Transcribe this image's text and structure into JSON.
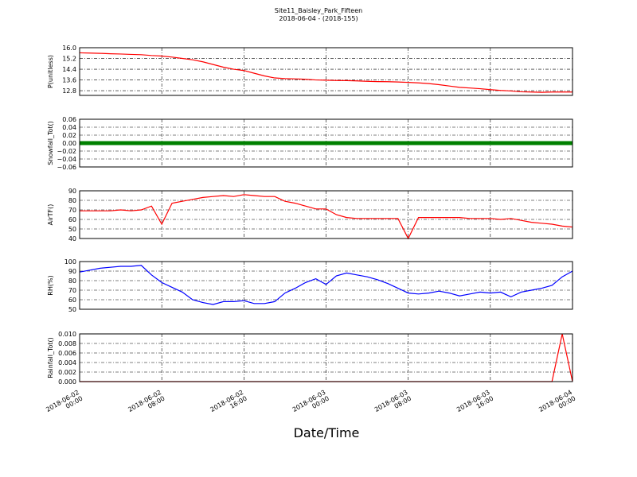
{
  "title": "Site11_Baisley_Park_Fifteen",
  "subtitle": "2018-06-04 - (2018-155)",
  "xlabel": "Date/Time",
  "chart_data": [
    {
      "type": "line",
      "ylabel": "P(unitless)",
      "x": [
        "2018-06-02 00:00",
        "2018-06-02 01:00",
        "2018-06-02 02:00",
        "2018-06-02 03:00",
        "2018-06-02 04:00",
        "2018-06-02 05:00",
        "2018-06-02 06:00",
        "2018-06-02 07:00",
        "2018-06-02 08:00",
        "2018-06-02 09:00",
        "2018-06-02 10:00",
        "2018-06-02 11:00",
        "2018-06-02 12:00",
        "2018-06-02 13:00",
        "2018-06-02 14:00",
        "2018-06-02 15:00",
        "2018-06-02 16:00",
        "2018-06-02 17:00",
        "2018-06-02 18:00",
        "2018-06-02 19:00",
        "2018-06-02 20:00",
        "2018-06-02 21:00",
        "2018-06-02 22:00",
        "2018-06-02 23:00",
        "2018-06-03 00:00",
        "2018-06-03 01:00",
        "2018-06-03 02:00",
        "2018-06-03 03:00",
        "2018-06-03 04:00",
        "2018-06-03 05:00",
        "2018-06-03 06:00",
        "2018-06-03 07:00",
        "2018-06-03 08:00",
        "2018-06-03 09:00",
        "2018-06-03 10:00",
        "2018-06-03 11:00",
        "2018-06-03 12:00",
        "2018-06-03 13:00",
        "2018-06-03 14:00",
        "2018-06-03 15:00",
        "2018-06-03 16:00",
        "2018-06-03 17:00",
        "2018-06-03 18:00",
        "2018-06-03 19:00",
        "2018-06-03 20:00",
        "2018-06-03 21:00",
        "2018-06-03 22:00",
        "2018-06-03 23:00",
        "2018-06-04 00:00"
      ],
      "series": [
        {
          "color": "#ff0000",
          "values": [
            15.62,
            15.6,
            15.58,
            15.55,
            15.53,
            15.5,
            15.48,
            15.42,
            15.38,
            15.3,
            15.2,
            15.1,
            14.95,
            14.75,
            14.55,
            14.4,
            14.3,
            14.1,
            13.9,
            13.75,
            13.7,
            13.68,
            13.65,
            13.6,
            13.58,
            13.56,
            13.55,
            13.53,
            13.5,
            13.48,
            13.47,
            13.45,
            13.42,
            13.38,
            13.33,
            13.25,
            13.15,
            13.05,
            13.0,
            12.95,
            12.88,
            12.82,
            12.78,
            12.72,
            12.7,
            12.68,
            12.7,
            12.7,
            12.7
          ]
        }
      ],
      "xlim": [
        "2018-06-02 00:00",
        "2018-06-04 00:00"
      ],
      "xticks": [
        "2018-06-02 00:00",
        "2018-06-02 08:00",
        "2018-06-02 16:00",
        "2018-06-03 00:00",
        "2018-06-03 08:00",
        "2018-06-03 16:00",
        "2018-06-04 00:00"
      ],
      "ylim": [
        12.45,
        16
      ],
      "yticks": [
        12.8,
        13.6,
        14.4,
        15.2,
        {
          "value": 16,
          "label": "16.0"
        }
      ],
      "grid": true
    },
    {
      "type": "line",
      "ylabel": "Snowfall_Tot()",
      "x": [
        "2018-06-02 00:00",
        "2018-06-02 01:00",
        "2018-06-02 02:00",
        "2018-06-02 03:00",
        "2018-06-02 04:00",
        "2018-06-02 05:00",
        "2018-06-02 06:00",
        "2018-06-02 07:00",
        "2018-06-02 08:00",
        "2018-06-02 09:00",
        "2018-06-02 10:00",
        "2018-06-02 11:00",
        "2018-06-02 12:00",
        "2018-06-02 13:00",
        "2018-06-02 14:00",
        "2018-06-02 15:00",
        "2018-06-02 16:00",
        "2018-06-02 17:00",
        "2018-06-02 18:00",
        "2018-06-02 19:00",
        "2018-06-02 20:00",
        "2018-06-02 21:00",
        "2018-06-02 22:00",
        "2018-06-02 23:00",
        "2018-06-03 00:00",
        "2018-06-03 01:00",
        "2018-06-03 02:00",
        "2018-06-03 03:00",
        "2018-06-03 04:00",
        "2018-06-03 05:00",
        "2018-06-03 06:00",
        "2018-06-03 07:00",
        "2018-06-03 08:00",
        "2018-06-03 09:00",
        "2018-06-03 10:00",
        "2018-06-03 11:00",
        "2018-06-03 12:00",
        "2018-06-03 13:00",
        "2018-06-03 14:00",
        "2018-06-03 15:00",
        "2018-06-03 16:00",
        "2018-06-03 17:00",
        "2018-06-03 18:00",
        "2018-06-03 19:00",
        "2018-06-03 20:00",
        "2018-06-03 21:00",
        "2018-06-03 22:00",
        "2018-06-03 23:00",
        "2018-06-04 00:00"
      ],
      "series": [
        {
          "color": "#008000",
          "values": [
            0,
            0,
            0,
            0,
            0,
            0,
            0,
            0,
            0,
            0,
            0,
            0,
            0,
            0,
            0,
            0,
            0,
            0,
            0,
            0,
            0,
            0,
            0,
            0,
            0,
            0,
            0,
            0,
            0,
            0,
            0,
            0,
            0,
            0,
            0,
            0,
            0,
            0,
            0,
            0,
            0,
            0,
            0,
            0,
            0,
            0,
            0,
            0,
            0
          ]
        }
      ],
      "xlim": [
        "2018-06-02 00:00",
        "2018-06-04 00:00"
      ],
      "xticks": [
        "2018-06-02 00:00",
        "2018-06-02 08:00",
        "2018-06-02 16:00",
        "2018-06-03 00:00",
        "2018-06-03 08:00",
        "2018-06-03 16:00",
        "2018-06-04 00:00"
      ],
      "ylim": [
        -0.06,
        0.06
      ],
      "yticks": [
        {
          "value": -0.06,
          "label": "−0.06"
        },
        {
          "value": -0.04,
          "label": "−0.04"
        },
        {
          "value": -0.02,
          "label": "−0.02"
        },
        {
          "value": 0,
          "label": "0.00"
        },
        0.02,
        0.04,
        0.06
      ],
      "grid": true
    },
    {
      "type": "line",
      "ylabel": "AirTF()",
      "x": [
        "2018-06-02 00:00",
        "2018-06-02 01:00",
        "2018-06-02 02:00",
        "2018-06-02 03:00",
        "2018-06-02 04:00",
        "2018-06-02 05:00",
        "2018-06-02 06:00",
        "2018-06-02 07:00",
        "2018-06-02 08:00",
        "2018-06-02 09:00",
        "2018-06-02 10:00",
        "2018-06-02 11:00",
        "2018-06-02 12:00",
        "2018-06-02 13:00",
        "2018-06-02 14:00",
        "2018-06-02 15:00",
        "2018-06-02 16:00",
        "2018-06-02 17:00",
        "2018-06-02 18:00",
        "2018-06-02 19:00",
        "2018-06-02 20:00",
        "2018-06-02 21:00",
        "2018-06-02 22:00",
        "2018-06-02 23:00",
        "2018-06-03 00:00",
        "2018-06-03 01:00",
        "2018-06-03 02:00",
        "2018-06-03 03:00",
        "2018-06-03 04:00",
        "2018-06-03 05:00",
        "2018-06-03 06:00",
        "2018-06-03 07:00",
        "2018-06-03 08:00",
        "2018-06-03 09:00",
        "2018-06-03 10:00",
        "2018-06-03 11:00",
        "2018-06-03 12:00",
        "2018-06-03 13:00",
        "2018-06-03 14:00",
        "2018-06-03 15:00",
        "2018-06-03 16:00",
        "2018-06-03 17:00",
        "2018-06-03 18:00",
        "2018-06-03 19:00",
        "2018-06-03 20:00",
        "2018-06-03 21:00",
        "2018-06-03 22:00",
        "2018-06-03 23:00",
        "2018-06-04 00:00"
      ],
      "series": [
        {
          "color": "#ff0000",
          "values": [
            69,
            69,
            69,
            69,
            70,
            69,
            70,
            74,
            55,
            77,
            79,
            81,
            83,
            84,
            85,
            84,
            86,
            85,
            84,
            84,
            79,
            77,
            74,
            71,
            71,
            65,
            62,
            61,
            61,
            61,
            61,
            61,
            40,
            62,
            62,
            62,
            62,
            62,
            61,
            61,
            61,
            60,
            61,
            59,
            57,
            56,
            55,
            53,
            52
          ]
        }
      ],
      "xlim": [
        "2018-06-02 00:00",
        "2018-06-04 00:00"
      ],
      "xticks": [
        "2018-06-02 00:00",
        "2018-06-02 08:00",
        "2018-06-02 16:00",
        "2018-06-03 00:00",
        "2018-06-03 08:00",
        "2018-06-03 16:00",
        "2018-06-04 00:00"
      ],
      "ylim": [
        40,
        90
      ],
      "yticks": [
        40,
        50,
        60,
        70,
        80,
        90
      ],
      "grid": true
    },
    {
      "type": "line",
      "ylabel": "RH(%)",
      "x": [
        "2018-06-02 00:00",
        "2018-06-02 01:00",
        "2018-06-02 02:00",
        "2018-06-02 03:00",
        "2018-06-02 04:00",
        "2018-06-02 05:00",
        "2018-06-02 06:00",
        "2018-06-02 07:00",
        "2018-06-02 08:00",
        "2018-06-02 09:00",
        "2018-06-02 10:00",
        "2018-06-02 11:00",
        "2018-06-02 12:00",
        "2018-06-02 13:00",
        "2018-06-02 14:00",
        "2018-06-02 15:00",
        "2018-06-02 16:00",
        "2018-06-02 17:00",
        "2018-06-02 18:00",
        "2018-06-02 19:00",
        "2018-06-02 20:00",
        "2018-06-02 21:00",
        "2018-06-02 22:00",
        "2018-06-02 23:00",
        "2018-06-03 00:00",
        "2018-06-03 01:00",
        "2018-06-03 02:00",
        "2018-06-03 03:00",
        "2018-06-03 04:00",
        "2018-06-03 05:00",
        "2018-06-03 06:00",
        "2018-06-03 07:00",
        "2018-06-03 08:00",
        "2018-06-03 09:00",
        "2018-06-03 10:00",
        "2018-06-03 11:00",
        "2018-06-03 12:00",
        "2018-06-03 13:00",
        "2018-06-03 14:00",
        "2018-06-03 15:00",
        "2018-06-03 16:00",
        "2018-06-03 17:00",
        "2018-06-03 18:00",
        "2018-06-03 19:00",
        "2018-06-03 20:00",
        "2018-06-03 21:00",
        "2018-06-03 22:00",
        "2018-06-03 23:00",
        "2018-06-04 00:00"
      ],
      "series": [
        {
          "color": "#0000ff",
          "values": [
            89,
            91,
            93,
            94,
            95,
            95,
            96,
            86,
            78,
            73,
            68,
            60,
            57,
            55,
            58,
            58,
            59,
            56,
            56,
            58,
            67,
            72,
            78,
            82,
            76,
            85,
            88,
            86,
            84,
            81,
            77,
            72,
            67,
            66,
            67,
            69,
            67,
            64,
            66,
            68,
            67,
            68,
            63,
            68,
            70,
            72,
            75,
            84,
            90
          ]
        }
      ],
      "xlim": [
        "2018-06-02 00:00",
        "2018-06-04 00:00"
      ],
      "xticks": [
        "2018-06-02 00:00",
        "2018-06-02 08:00",
        "2018-06-02 16:00",
        "2018-06-03 00:00",
        "2018-06-03 08:00",
        "2018-06-03 16:00",
        "2018-06-04 00:00"
      ],
      "ylim": [
        50,
        100
      ],
      "yticks": [
        50,
        60,
        70,
        80,
        90,
        100
      ],
      "grid": true
    },
    {
      "type": "line",
      "ylabel": "Rainfall_Tot()",
      "x": [
        "2018-06-02 00:00",
        "2018-06-02 01:00",
        "2018-06-02 02:00",
        "2018-06-02 03:00",
        "2018-06-02 04:00",
        "2018-06-02 05:00",
        "2018-06-02 06:00",
        "2018-06-02 07:00",
        "2018-06-02 08:00",
        "2018-06-02 09:00",
        "2018-06-02 10:00",
        "2018-06-02 11:00",
        "2018-06-02 12:00",
        "2018-06-02 13:00",
        "2018-06-02 14:00",
        "2018-06-02 15:00",
        "2018-06-02 16:00",
        "2018-06-02 17:00",
        "2018-06-02 18:00",
        "2018-06-02 19:00",
        "2018-06-02 20:00",
        "2018-06-02 21:00",
        "2018-06-02 22:00",
        "2018-06-02 23:00",
        "2018-06-03 00:00",
        "2018-06-03 01:00",
        "2018-06-03 02:00",
        "2018-06-03 03:00",
        "2018-06-03 04:00",
        "2018-06-03 05:00",
        "2018-06-03 06:00",
        "2018-06-03 07:00",
        "2018-06-03 08:00",
        "2018-06-03 09:00",
        "2018-06-03 10:00",
        "2018-06-03 11:00",
        "2018-06-03 12:00",
        "2018-06-03 13:00",
        "2018-06-03 14:00",
        "2018-06-03 15:00",
        "2018-06-03 16:00",
        "2018-06-03 17:00",
        "2018-06-03 18:00",
        "2018-06-03 19:00",
        "2018-06-03 20:00",
        "2018-06-03 21:00",
        "2018-06-03 22:00",
        "2018-06-03 23:00",
        "2018-06-04 00:00"
      ],
      "series": [
        {
          "color": "#ff0000",
          "values": [
            0,
            0,
            0,
            0,
            0,
            0,
            0,
            0,
            0,
            0,
            0,
            0,
            0,
            0,
            0,
            0,
            0,
            0,
            0,
            0,
            0,
            0,
            0,
            0,
            0,
            0,
            0,
            0,
            0,
            0,
            0,
            0,
            0,
            0,
            0,
            0,
            0,
            0,
            0,
            0,
            0,
            0,
            0,
            0,
            0,
            0,
            0,
            0.01,
            0
          ]
        }
      ],
      "xlim": [
        "2018-06-02 00:00",
        "2018-06-04 00:00"
      ],
      "xticks": [
        {
          "value": "2018-06-02 00:00",
          "label": "2018-06-02\n00:00"
        },
        {
          "value": "2018-06-02 08:00",
          "label": "2018-06-02\n08:00"
        },
        {
          "value": "2018-06-02 16:00",
          "label": "2018-06-02\n16:00"
        },
        {
          "value": "2018-06-03 00:00",
          "label": "2018-06-03\n00:00"
        },
        {
          "value": "2018-06-03 08:00",
          "label": "2018-06-03\n08:00"
        },
        {
          "value": "2018-06-03 16:00",
          "label": "2018-06-03\n16:00"
        },
        {
          "value": "2018-06-04 00:00",
          "label": "2018-06-04\n00:00"
        }
      ],
      "ylim": [
        0,
        0.01
      ],
      "yticks": [
        {
          "value": 0,
          "label": "0.000"
        },
        {
          "value": 0.002,
          "label": "0.002"
        },
        {
          "value": 0.004,
          "label": "0.004"
        },
        {
          "value": 0.006,
          "label": "0.006"
        },
        {
          "value": 0.008,
          "label": "0.008"
        },
        {
          "value": 0.01,
          "label": "0.010"
        }
      ],
      "grid": true
    }
  ]
}
